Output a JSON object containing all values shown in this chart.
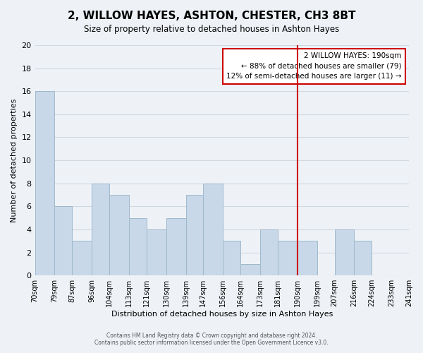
{
  "title": "2, WILLOW HAYES, ASHTON, CHESTER, CH3 8BT",
  "subtitle": "Size of property relative to detached houses in Ashton Hayes",
  "xlabel": "Distribution of detached houses by size in Ashton Hayes",
  "ylabel": "Number of detached properties",
  "footer_line1": "Contains HM Land Registry data © Crown copyright and database right 2024.",
  "footer_line2": "Contains public sector information licensed under the Open Government Licence v3.0.",
  "bin_edges": [
    70,
    79,
    87,
    96,
    104,
    113,
    121,
    130,
    139,
    147,
    156,
    164,
    173,
    181,
    190,
    199,
    207,
    216,
    224,
    233,
    241
  ],
  "tick_labels": [
    "70sqm",
    "79sqm",
    "87sqm",
    "96sqm",
    "104sqm",
    "113sqm",
    "121sqm",
    "130sqm",
    "139sqm",
    "147sqm",
    "156sqm",
    "164sqm",
    "173sqm",
    "181sqm",
    "190sqm",
    "199sqm",
    "207sqm",
    "216sqm",
    "224sqm",
    "233sqm",
    "241sqm"
  ],
  "bar_heights": [
    16,
    6,
    3,
    8,
    7,
    5,
    4,
    5,
    7,
    8,
    3,
    1,
    4,
    3,
    3,
    0,
    4,
    3,
    0,
    0
  ],
  "bar_color": "#c8d8e8",
  "bar_edge_color": "#a0b8cc",
  "reference_line_x": 190,
  "reference_line_color": "#cc0000",
  "ylim": [
    0,
    20
  ],
  "yticks": [
    0,
    2,
    4,
    6,
    8,
    10,
    12,
    14,
    16,
    18,
    20
  ],
  "annotation_title": "2 WILLOW HAYES: 190sqm",
  "annotation_line1": "← 88% of detached houses are smaller (79)",
  "annotation_line2": "12% of semi-detached houses are larger (11) →",
  "annotation_box_color": "#ffffff",
  "annotation_box_edge": "#cc0000",
  "grid_color": "#d0d8e0",
  "bg_color": "#eef2f7"
}
